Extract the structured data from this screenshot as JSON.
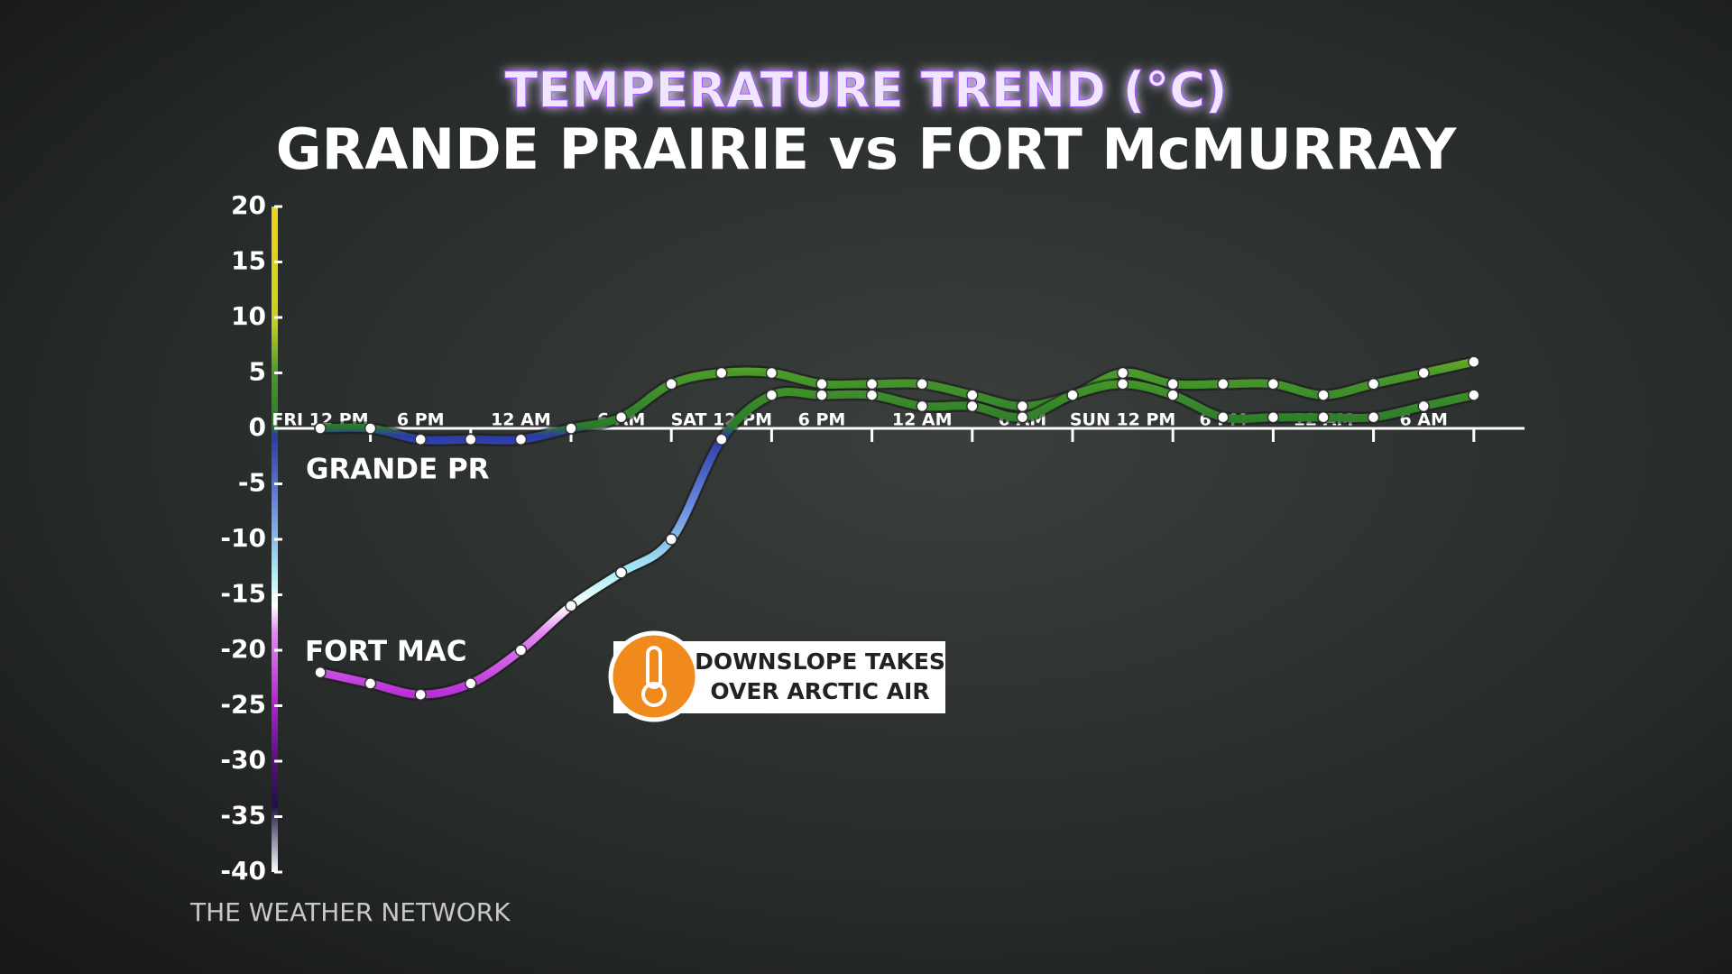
{
  "chart_data": {
    "type": "line",
    "title": "TEMPERATURE TREND (°C)",
    "subtitle": "GRANDE PRAIRIE vs FORT McMURRAY",
    "categories": [
      "FRI 12 PM",
      null,
      "6 PM",
      null,
      "12 AM",
      null,
      "6 AM",
      null,
      "SAT 12 PM",
      null,
      "6 PM",
      null,
      "12 AM",
      null,
      "6 AM",
      null,
      "SUN 12 PM",
      null,
      "6 PM",
      null,
      "12 AM",
      null,
      "6 AM",
      null
    ],
    "series": [
      {
        "name": "GRANDE PR",
        "values": [
          0,
          0,
          -1,
          -1,
          -1,
          0,
          1,
          4,
          5,
          5,
          4,
          4,
          4,
          3,
          2,
          3,
          5,
          4,
          4,
          4,
          3,
          4,
          5,
          6
        ]
      },
      {
        "name": "FORT MAC",
        "values": [
          -22,
          -23,
          -24,
          -23,
          -20,
          -16,
          -13,
          -10,
          -1,
          3,
          3,
          3,
          2,
          2,
          1,
          3,
          4,
          3,
          1,
          1,
          1,
          1,
          2,
          3
        ]
      }
    ],
    "ylim": [
      -40,
      20
    ],
    "yticks": [
      20,
      15,
      10,
      5,
      0,
      -5,
      -10,
      -15,
      -20,
      -25,
      -30,
      -35,
      -40
    ],
    "callout": [
      "DOWNSLOPE TAKES",
      "OVER ARCTIC AIR"
    ],
    "source": "THE WEATHER NETWORK"
  }
}
